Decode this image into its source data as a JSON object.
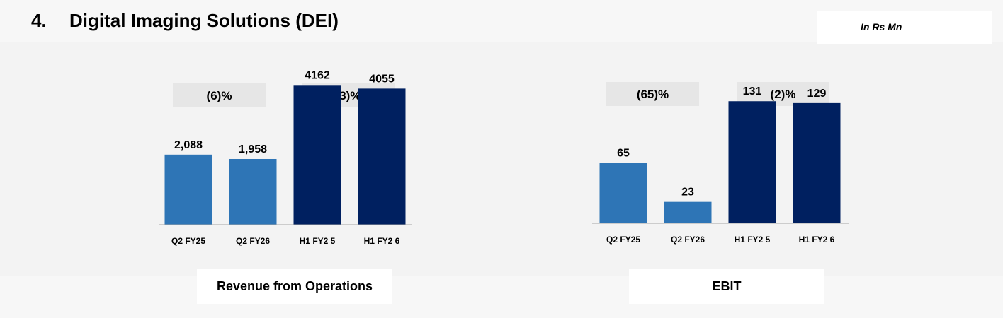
{
  "header": {
    "number": "4.",
    "title": "Digital Imaging Solutions (DEI)",
    "unit": "In Rs Mn"
  },
  "colors": {
    "quarter_bar": "#2e75b6",
    "half_year_bar": "#002060",
    "growth_box": "#e6e6e6",
    "axis": "#a6a6a6"
  },
  "chart_data": [
    {
      "type": "bar",
      "title": "Revenue from Operations",
      "categories": [
        "Q2 FY25",
        "Q2 FY26",
        "H1 FY2 5",
        "H1 FY2 6"
      ],
      "values": [
        2088,
        1958,
        4162,
        4055
      ],
      "value_labels": [
        "2,088",
        "1,958",
        "4162",
        "4055"
      ],
      "growth_labels": [
        "(6)%",
        "(3)%"
      ],
      "ylim": [
        0,
        6000
      ],
      "grid": false,
      "legend": "none"
    },
    {
      "type": "bar",
      "title": "EBIT",
      "categories": [
        "Q2 FY25",
        "Q2 FY26",
        "H1 FY2 5",
        "H1 FY2 6"
      ],
      "values": [
        65,
        23,
        131,
        129
      ],
      "value_labels": [
        "65",
        "23",
        "131",
        "129"
      ],
      "growth_labels": [
        "(65)%",
        "(2)%"
      ],
      "ylim": [
        0,
        160
      ],
      "grid": false,
      "legend": "none"
    }
  ]
}
